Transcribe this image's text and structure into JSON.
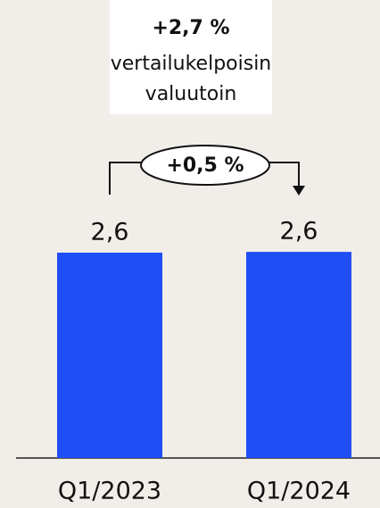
{
  "chart_data": {
    "type": "bar",
    "categories": [
      "Q1/2023",
      "Q1/2024"
    ],
    "values": [
      2.6,
      2.61
    ],
    "value_labels": [
      "2,6",
      "2,6"
    ],
    "color": "#1f4ef5",
    "ylim": [
      0,
      2.6
    ],
    "annotations": [
      "+2,7 %",
      "vertailukelpoisin",
      "valuutoin",
      "+0,5 %"
    ]
  }
}
